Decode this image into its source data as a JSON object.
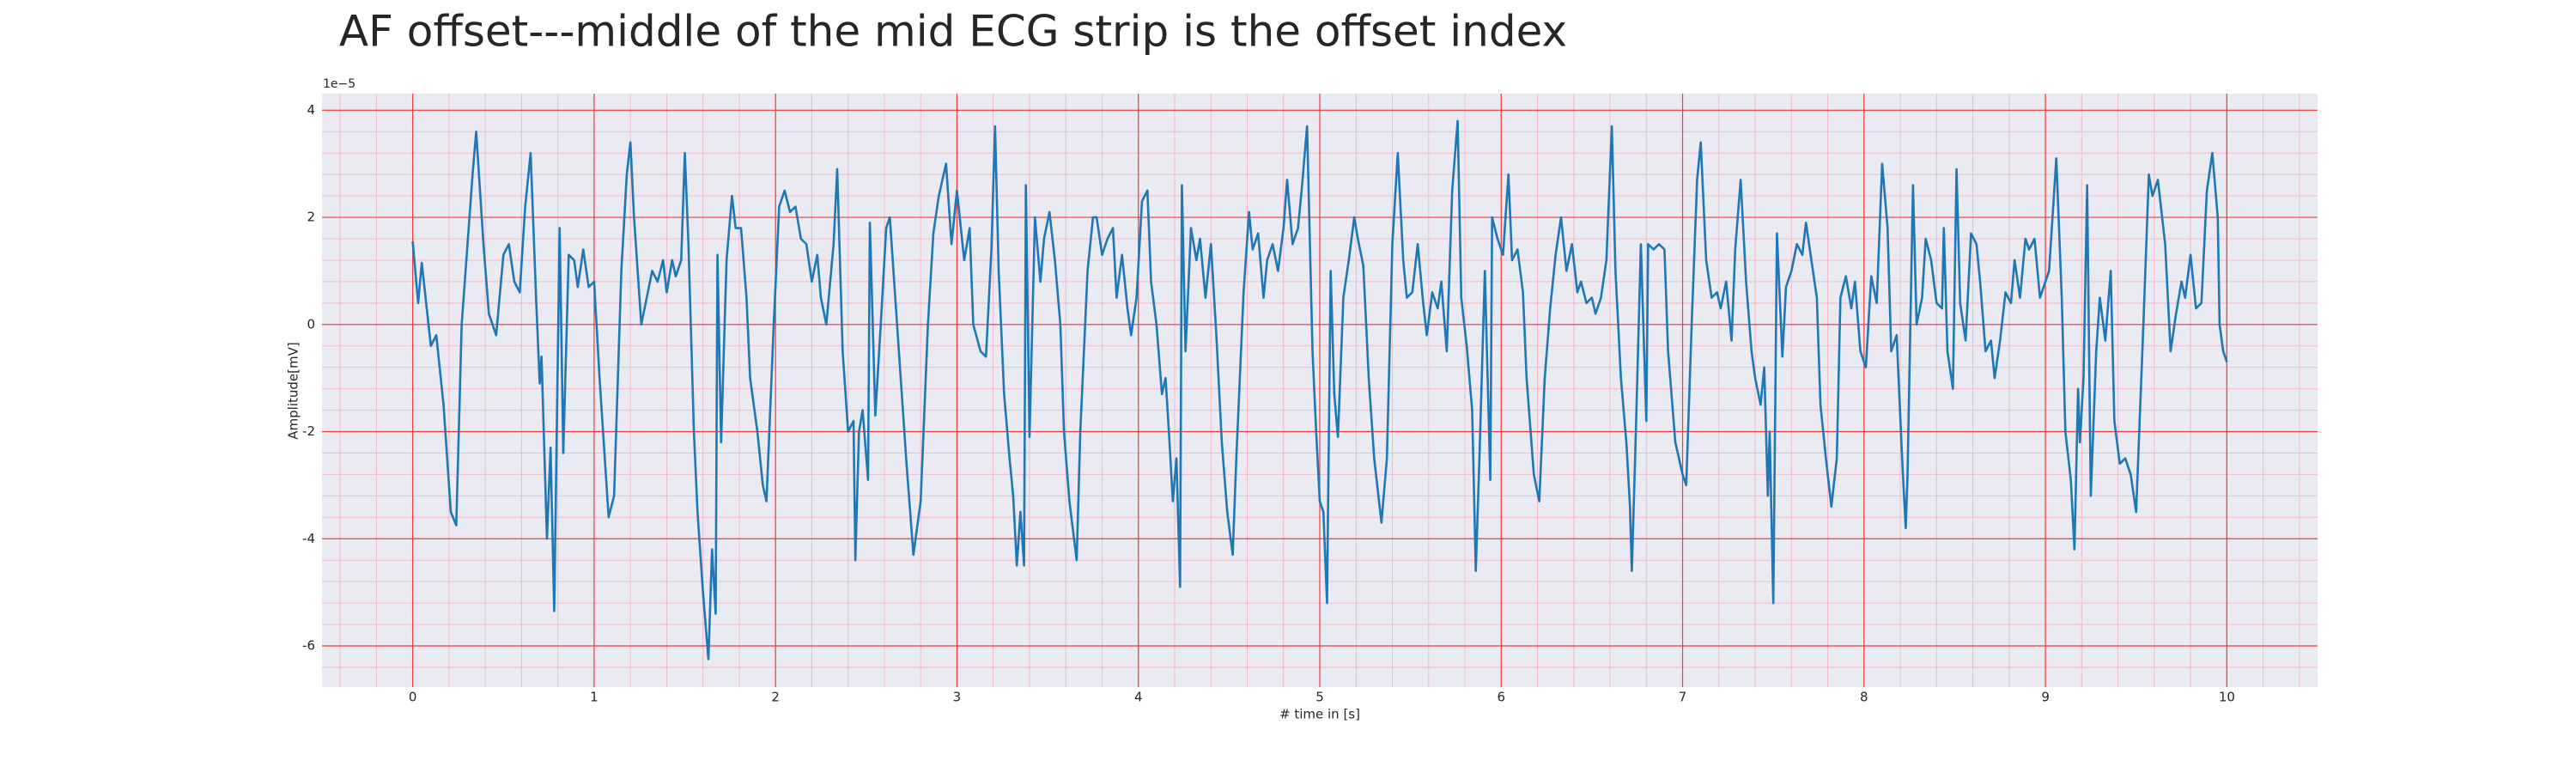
{
  "chart_data": {
    "type": "line",
    "title": "AF offset---middle of the mid ECG strip is the offset index",
    "xlabel": "# time in [s]",
    "ylabel": "Amplitude[mV]",
    "y_offset_label": "1e−5",
    "color": "#1f77b4",
    "grid": true,
    "minor_grid": true,
    "xlim": [
      -0.5,
      10.5
    ],
    "xticks": [
      0,
      1,
      2,
      3,
      4,
      5,
      6,
      7,
      8,
      9,
      10
    ],
    "ylim": [
      -6.77,
      4.31
    ],
    "yticks": [
      -6,
      -4,
      -2,
      0,
      2,
      4
    ],
    "x": [
      0.0,
      0.03,
      0.05,
      0.1,
      0.13,
      0.17,
      0.21,
      0.24,
      0.27,
      0.33,
      0.35,
      0.39,
      0.42,
      0.46,
      0.5,
      0.53,
      0.56,
      0.59,
      0.62,
      0.65,
      0.68,
      0.7,
      0.71,
      0.74,
      0.76,
      0.78,
      0.81,
      0.83,
      0.86,
      0.89,
      0.91,
      0.94,
      0.97,
      1.0,
      1.03,
      1.08,
      1.11,
      1.15,
      1.18,
      1.2,
      1.22,
      1.26,
      1.29,
      1.32,
      1.35,
      1.38,
      1.4,
      1.43,
      1.45,
      1.48,
      1.5,
      1.52,
      1.55,
      1.57,
      1.6,
      1.63,
      1.65,
      1.67,
      1.68,
      1.7,
      1.73,
      1.76,
      1.78,
      1.81,
      1.84,
      1.86,
      1.9,
      1.93,
      1.95,
      1.99,
      2.02,
      2.05,
      2.08,
      2.11,
      2.14,
      2.17,
      2.2,
      2.23,
      2.25,
      2.28,
      2.32,
      2.34,
      2.37,
      2.4,
      2.43,
      2.44,
      2.46,
      2.48,
      2.51,
      2.52,
      2.55,
      2.58,
      2.61,
      2.63,
      2.66,
      2.69,
      2.72,
      2.76,
      2.8,
      2.84,
      2.87,
      2.9,
      2.94,
      2.97,
      3.0,
      3.04,
      3.07,
      3.09,
      3.13,
      3.16,
      3.19,
      3.21,
      3.23,
      3.26,
      3.29,
      3.31,
      3.33,
      3.35,
      3.37,
      3.38,
      3.4,
      3.43,
      3.46,
      3.48,
      3.51,
      3.54,
      3.57,
      3.59,
      3.62,
      3.66,
      3.68,
      3.72,
      3.75,
      3.77,
      3.8,
      3.83,
      3.86,
      3.88,
      3.91,
      3.94,
      3.96,
      3.99,
      4.02,
      4.05,
      4.07,
      4.1,
      4.13,
      4.15,
      4.17,
      4.19,
      4.21,
      4.23,
      4.24,
      4.26,
      4.29,
      4.32,
      4.34,
      4.37,
      4.4,
      4.43,
      4.46,
      4.49,
      4.52,
      4.54,
      4.58,
      4.61,
      4.63,
      4.66,
      4.69,
      4.71,
      4.74,
      4.77,
      4.8,
      4.82,
      4.85,
      4.88,
      4.9,
      4.93,
      4.96,
      4.98,
      5.0,
      5.02,
      5.04,
      5.06,
      5.08,
      5.1,
      5.13,
      5.16,
      5.19,
      5.21,
      5.24,
      5.27,
      5.3,
      5.34,
      5.37,
      5.4,
      5.43,
      5.46,
      5.48,
      5.51,
      5.54,
      5.57,
      5.59,
      5.62,
      5.65,
      5.67,
      5.7,
      5.73,
      5.76,
      5.78,
      5.81,
      5.84,
      5.86,
      5.88,
      5.91,
      5.94,
      5.95,
      5.98,
      6.01,
      6.04,
      6.06,
      6.09,
      6.12,
      6.14,
      6.18,
      6.21,
      6.24,
      6.27,
      6.3,
      6.33,
      6.36,
      6.39,
      6.42,
      6.44,
      6.47,
      6.5,
      6.52,
      6.55,
      6.58,
      6.61,
      6.63,
      6.66,
      6.69,
      6.71,
      6.72,
      6.74,
      6.77,
      6.8,
      6.81,
      6.84,
      6.87,
      6.9,
      6.92,
      6.96,
      7.0,
      7.02,
      7.05,
      7.08,
      7.1,
      7.13,
      7.16,
      7.19,
      7.21,
      7.24,
      7.27,
      7.29,
      7.32,
      7.35,
      7.38,
      7.4,
      7.43,
      7.45,
      7.47,
      7.48,
      7.5,
      7.52,
      7.55,
      7.57,
      7.6,
      7.63,
      7.66,
      7.68,
      7.71,
      7.74,
      7.76,
      7.79,
      7.82,
      7.85,
      7.87,
      7.9,
      7.93,
      7.95,
      7.98,
      8.01,
      8.04,
      8.07,
      8.1,
      8.13,
      8.15,
      8.18,
      8.21,
      8.23,
      8.24,
      8.27,
      8.29,
      8.32,
      8.34,
      8.37,
      8.4,
      8.43,
      8.44,
      8.46,
      8.49,
      8.51,
      8.53,
      8.56,
      8.59,
      8.62,
      8.64,
      8.67,
      8.7,
      8.72,
      8.75,
      8.78,
      8.81,
      8.83,
      8.86,
      8.89,
      8.91,
      8.94,
      8.97,
      9.0,
      9.02,
      9.06,
      9.09,
      9.11,
      9.14,
      9.16,
      9.18,
      9.19,
      9.21,
      9.23,
      9.25,
      9.28,
      9.3,
      9.33,
      9.36,
      9.38,
      9.41,
      9.44,
      9.47,
      9.5,
      9.54,
      9.57,
      9.59,
      9.62,
      9.66,
      9.69,
      9.72,
      9.75,
      9.77,
      9.8,
      9.83,
      9.86,
      9.89,
      9.92,
      9.95,
      9.96,
      9.98,
      10.0
    ],
    "values": [
      1.55,
      0.4,
      1.15,
      -0.4,
      -0.2,
      -1.5,
      -3.5,
      -3.75,
      0,
      2.8,
      3.6,
      1.5,
      0.2,
      -0.2,
      1.3,
      1.5,
      0.8,
      0.6,
      2.2,
      3.2,
      0.5,
      -1.1,
      -0.6,
      -4,
      -2.3,
      -5.35,
      1.8,
      -2.4,
      1.3,
      1.2,
      0.7,
      1.4,
      0.7,
      0.8,
      -1,
      -3.6,
      -3.2,
      1,
      2.8,
      3.4,
      2,
      0,
      0.5,
      1,
      0.8,
      1.2,
      0.6,
      1.2,
      0.9,
      1.2,
      3.2,
      1.5,
      -2,
      -3.5,
      -5,
      -6.25,
      -4.2,
      -5.4,
      1.3,
      -2.2,
      1.2,
      2.4,
      1.8,
      1.8,
      0.5,
      -1,
      -2,
      -3,
      -3.3,
      0,
      2.2,
      2.5,
      2.1,
      2.2,
      1.6,
      1.5,
      0.8,
      1.3,
      0.5,
      0,
      1.5,
      2.9,
      -0.5,
      -2,
      -1.8,
      -4.4,
      -2,
      -1.6,
      -2.9,
      1.9,
      -1.7,
      0,
      1.8,
      2,
      0.5,
      -1,
      -2.5,
      -4.3,
      -3.3,
      0,
      1.7,
      2.4,
      3,
      1.5,
      2.5,
      1.2,
      1.8,
      0,
      -0.5,
      -0.6,
      1.4,
      3.7,
      1,
      -1.3,
      -2.5,
      -3.2,
      -4.5,
      -3.5,
      -4.5,
      2.6,
      -2.1,
      2,
      0.8,
      1.6,
      2.1,
      1.2,
      0,
      -2,
      -3.3,
      -4.4,
      -2,
      1,
      2,
      2,
      1.3,
      1.6,
      1.8,
      0.5,
      1.3,
      0.3,
      -0.2,
      0.5,
      2.3,
      2.5,
      0.8,
      0,
      -1.3,
      -1,
      -2.1,
      -3.3,
      -2.5,
      -4.9,
      2.6,
      -0.5,
      1.8,
      1.2,
      1.6,
      0.5,
      1.5,
      -0.2,
      -2.2,
      -3.5,
      -4.3,
      -2.5,
      0.6,
      2.1,
      1.4,
      1.7,
      0.5,
      1.2,
      1.5,
      1,
      1.8,
      2.7,
      1.5,
      1.8,
      2.5,
      3.7,
      -0.5,
      -2,
      -3.3,
      -3.5,
      -5.2,
      1,
      -1.3,
      -2.1,
      0.5,
      1.2,
      2,
      1.6,
      1.1,
      -1,
      -2.5,
      -3.7,
      -2.5,
      1.5,
      3.2,
      1.2,
      0.5,
      0.6,
      1.5,
      0.4,
      -0.2,
      0.6,
      0.3,
      0.8,
      -0.5,
      2.5,
      3.8,
      0.5,
      -0.4,
      -1.6,
      -4.6,
      -2.5,
      1,
      -2.9,
      2,
      1.6,
      1.3,
      2.8,
      1.2,
      1.4,
      0.6,
      -1,
      -2.8,
      -3.3,
      -1,
      0.3,
      1.3,
      2,
      1,
      1.5,
      0.6,
      0.8,
      0.4,
      0.5,
      0.2,
      0.5,
      1.2,
      3.7,
      1,
      -1,
      -2.2,
      -3.4,
      -4.6,
      -2.3,
      1.5,
      -1.8,
      1.5,
      1.4,
      1.5,
      1.4,
      -0.5,
      -2.2,
      -2.8,
      -3,
      0,
      2.7,
      3.4,
      1.2,
      0.5,
      0.6,
      0.3,
      0.8,
      -0.3,
      1.4,
      2.7,
      0.8,
      -0.5,
      -1,
      -1.5,
      -0.8,
      -3.2,
      -2,
      -5.2,
      1.7,
      -0.6,
      0.7,
      1,
      1.5,
      1.3,
      1.9,
      1.2,
      0.5,
      -1.5,
      -2.5,
      -3.4,
      -2.5,
      0.5,
      0.9,
      0.3,
      0.8,
      -0.5,
      -0.8,
      0.9,
      0.4,
      3,
      1.8,
      -0.5,
      -0.2,
      -2.5,
      -3.8,
      -2.8,
      2.6,
      0,
      0.5,
      1.6,
      1.2,
      0.4,
      0.3,
      1.8,
      -0.5,
      -1.2,
      2.9,
      0.4,
      -0.3,
      1.7,
      1.5,
      0.8,
      -0.5,
      -0.3,
      -1,
      -0.3,
      0.6,
      0.4,
      1.2,
      0.5,
      1.6,
      1.4,
      1.6,
      0.5,
      0.8,
      1,
      3.1,
      0.5,
      -2,
      -2.9,
      -4.2,
      -1.2,
      -2.2,
      -1,
      2.6,
      -3.2,
      -0.5,
      0.5,
      -0.3,
      1,
      -1.8,
      -2.6,
      -2.5,
      -2.8,
      -3.5,
      0,
      2.8,
      2.4,
      2.7,
      1.5,
      -0.5,
      0.2,
      0.8,
      0.5,
      1.3,
      0.3,
      0.4,
      2.5,
      3.2,
      2,
      0,
      -0.5,
      -0.7
    ]
  }
}
